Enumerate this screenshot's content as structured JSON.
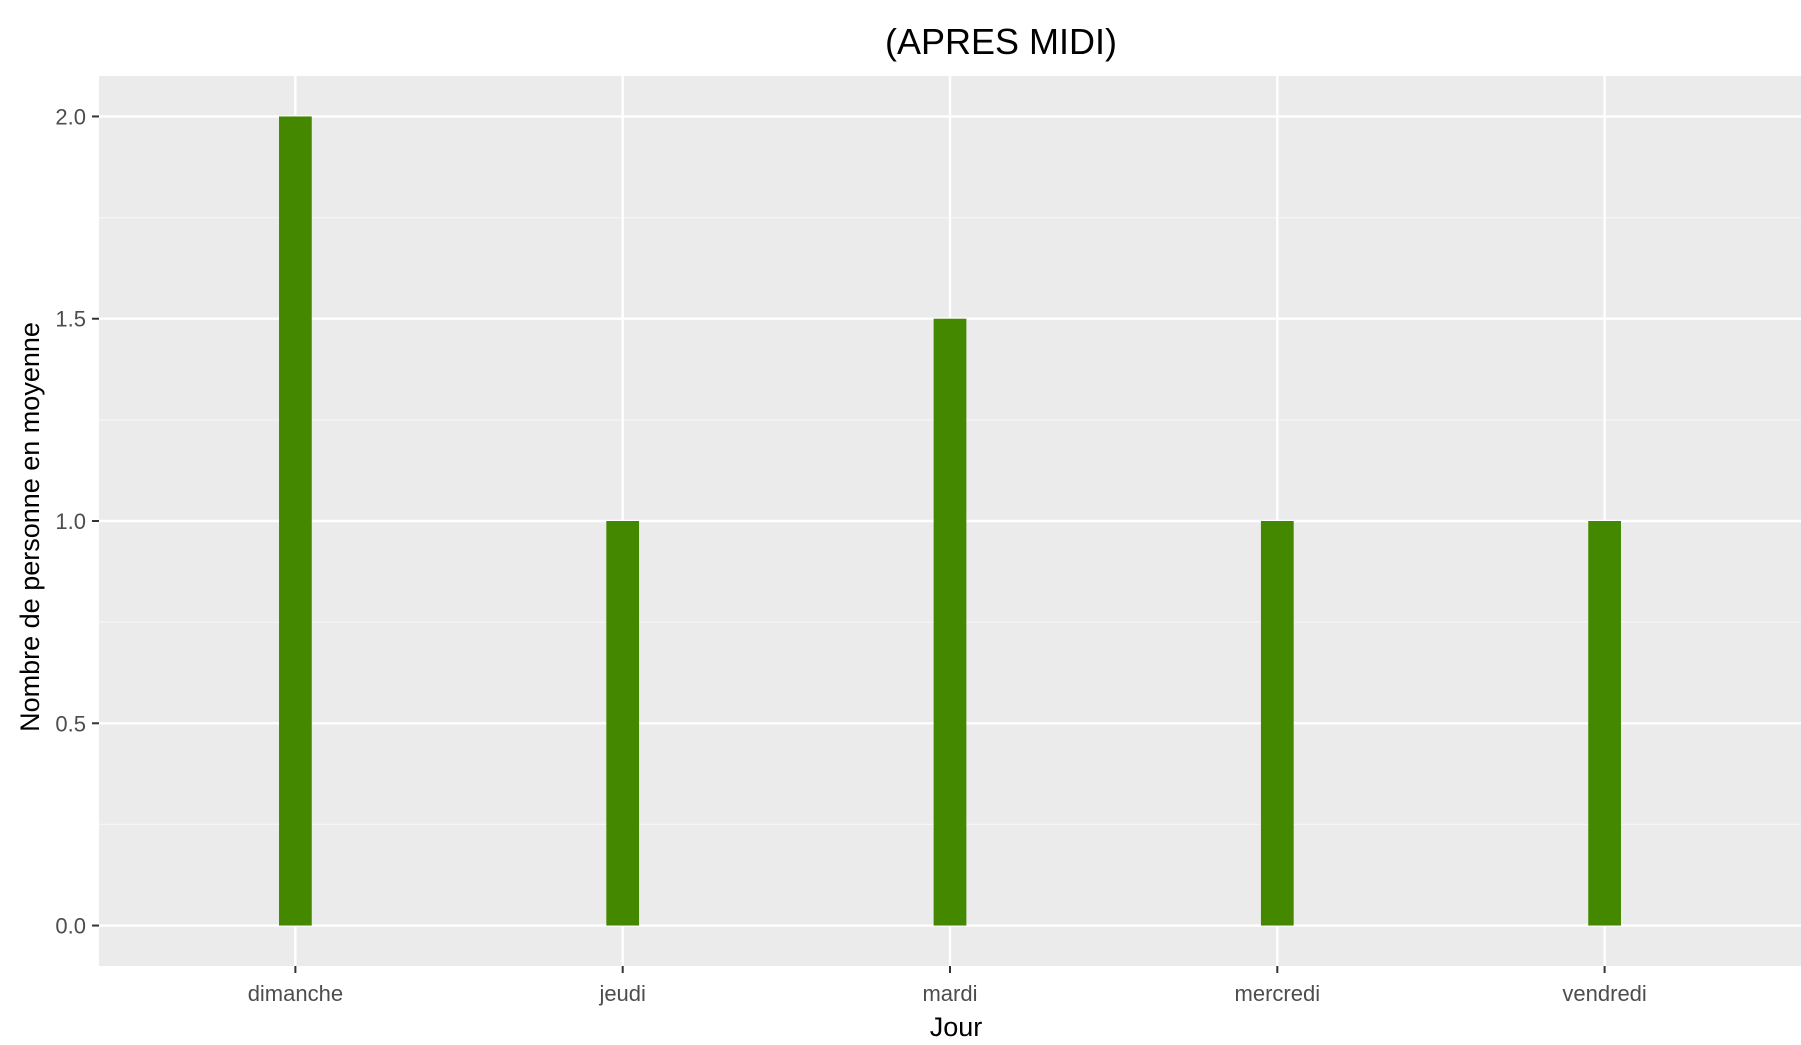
{
  "chart_data": {
    "type": "bar",
    "title": "(APRES MIDI)",
    "xlabel": "Jour",
    "ylabel": "Nombre de personne en moyenne",
    "categories": [
      "dimanche",
      "jeudi",
      "mardi",
      "mercredi",
      "vendredi"
    ],
    "values": [
      2.0,
      1.0,
      1.5,
      1.0,
      1.0
    ],
    "ylim": [
      -0.1,
      2.1
    ],
    "yticks": [
      0.0,
      0.5,
      1.0,
      1.5,
      2.0
    ],
    "ytick_labels": [
      "0.0",
      "0.5",
      "1.0",
      "1.5",
      "2.0"
    ],
    "grid": true,
    "legend": "none",
    "colors": {
      "bar": "#448800",
      "panel_background": "#ebebeb",
      "grid_major": "#ffffff",
      "grid_minor": "#f5f5f5",
      "tick_text": "#4d4d4d",
      "tick_mark": "#333333"
    }
  }
}
